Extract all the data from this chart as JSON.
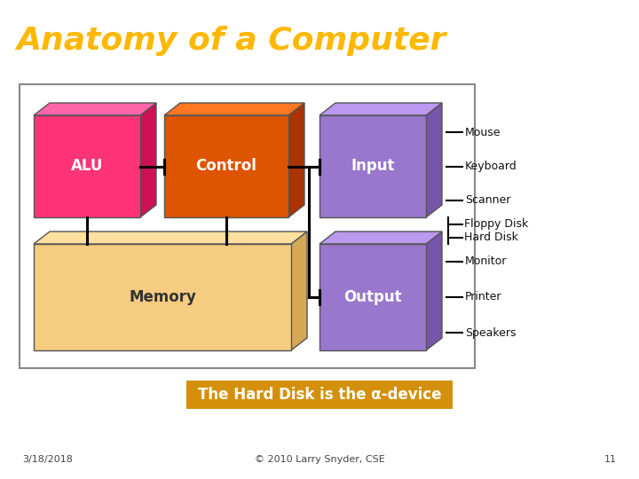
{
  "title": "Anatomy of a Computer",
  "title_color": "#FFB800",
  "title_bg": "#000000",
  "title_fontsize": 26,
  "bg_color": "#ffffff",
  "footer_date": "3/18/2018",
  "footer_copy": "© 2010 Larry Snyder, CSE",
  "footer_page": "11",
  "subtitle_text": "The Hard Disk is the α-device",
  "subtitle_bg": "#D4900A",
  "subtitle_fg": "#ffffff",
  "alu_color": "#FF3377",
  "alu_dark": "#CC1155",
  "alu_top": "#FF66AA",
  "control_color": "#DD5500",
  "control_dark": "#AA3300",
  "control_top": "#FF7722",
  "input_color": "#9977CC",
  "input_dark": "#7755AA",
  "input_top": "#BB99EE",
  "memory_color": "#F5CC80",
  "memory_dark": "#D4A855",
  "memory_top": "#FFE0A0",
  "output_color": "#9977CC",
  "output_dark": "#7755AA",
  "output_top": "#BB99EE",
  "input_items": [
    "Mouse",
    "Keyboard",
    "Scanner"
  ],
  "storage_items": [
    "Hard Disk",
    "Floppy Disk"
  ],
  "output_items": [
    "Monitor",
    "Printer",
    "Speakers"
  ],
  "lc": "#000000"
}
